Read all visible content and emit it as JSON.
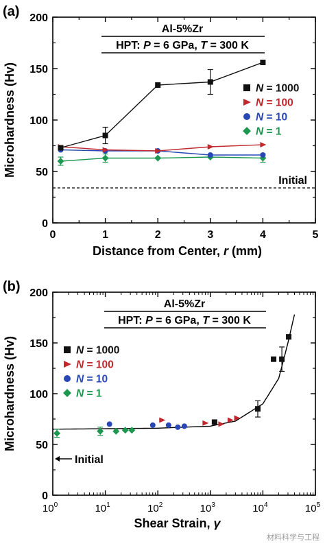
{
  "chart_data": [
    {
      "panel_label": "(a)",
      "type": "line",
      "title_line1": "Al-5%Zr",
      "title_line2_prefix": "HPT: ",
      "title_line2_P": "P",
      "title_line2_mid": " = 6 GPa, ",
      "title_line2_T": "T",
      "title_line2_suffix": " = 300 K",
      "xlabel_prefix": "Distance from Center, ",
      "xlabel_var": "r",
      "xlabel_suffix": " (mm)",
      "ylabel": "Microhardness (Hv)",
      "xlim": [
        0,
        5
      ],
      "ylim": [
        0,
        200
      ],
      "xticks": [
        0,
        1,
        2,
        3,
        4,
        5
      ],
      "yticks": [
        0,
        50,
        100,
        150,
        200
      ],
      "legend_position": "right",
      "reference_line": {
        "y": 34,
        "label": "Initial"
      },
      "series": [
        {
          "name_var": "N",
          "name_value": "1000",
          "color": "#111111",
          "marker": "square",
          "x": [
            0.15,
            1,
            2,
            3,
            4
          ],
          "y": [
            73,
            85,
            134,
            137,
            156
          ],
          "err": [
            0,
            8,
            0,
            12,
            0
          ]
        },
        {
          "name_var": "N",
          "name_value": "100",
          "color": "#c0282d",
          "marker": "triangle-right",
          "x": [
            0.15,
            1,
            2,
            3,
            4
          ],
          "y": [
            74,
            71,
            70,
            74,
            76
          ],
          "err": [
            0,
            0,
            0,
            0,
            0
          ]
        },
        {
          "name_var": "N",
          "name_value": "10",
          "color": "#2948b5",
          "marker": "circle",
          "x": [
            0.15,
            1,
            2,
            3,
            4
          ],
          "y": [
            71,
            70,
            70,
            66,
            66
          ],
          "err": [
            0,
            0,
            0,
            0,
            0
          ]
        },
        {
          "name_var": "N",
          "name_value": "1",
          "color": "#1e9850",
          "marker": "diamond",
          "x": [
            0.15,
            1,
            2,
            3,
            4
          ],
          "y": [
            60,
            63,
            63,
            64,
            63
          ],
          "err": [
            4,
            4,
            0,
            0,
            4
          ]
        }
      ]
    },
    {
      "panel_label": "(b)",
      "type": "scatter",
      "title_line1": "Al-5%Zr",
      "title_line2_prefix": "HPT: ",
      "title_line2_P": "P",
      "title_line2_mid": " = 6 GPa, ",
      "title_line2_T": "T",
      "title_line2_suffix": " = 300 K",
      "xlabel_prefix": "Shear Strain, ",
      "xlabel_var": "γ",
      "xlabel_suffix": "",
      "ylabel": "Microhardness (Hv)",
      "xscale": "log",
      "xlim": [
        1,
        100000
      ],
      "ylim": [
        0,
        200
      ],
      "xtick_base": "10",
      "xtick_exponents": [
        "0",
        "1",
        "2",
        "3",
        "4",
        "5"
      ],
      "yticks": [
        0,
        50,
        100,
        150,
        200
      ],
      "legend_position": "left",
      "annotation": {
        "label": "Initial",
        "arrow": "left"
      },
      "fit_curve": {
        "x": [
          1,
          10,
          100,
          1000,
          3000,
          10000,
          20000,
          30000,
          40000
        ],
        "y": [
          65,
          65.5,
          66,
          68,
          73,
          90,
          115,
          150,
          178
        ]
      },
      "series": [
        {
          "name_var": "N",
          "name_value": "1000",
          "color": "#111111",
          "marker": "square",
          "x": [
            1200,
            8000,
            16000,
            23000,
            31000
          ],
          "y": [
            72,
            85,
            134,
            134,
            156
          ],
          "err": [
            0,
            8,
            0,
            12,
            0
          ]
        },
        {
          "name_var": "N",
          "name_value": "100",
          "color": "#c0282d",
          "marker": "triangle-right",
          "x": [
            120,
            800,
            1600,
            2400,
            3200
          ],
          "y": [
            74,
            71,
            70,
            74,
            76
          ],
          "err": [
            0,
            0,
            0,
            0,
            0
          ]
        },
        {
          "name_var": "N",
          "name_value": "10",
          "color": "#2948b5",
          "marker": "circle",
          "x": [
            12,
            80,
            160,
            240,
            320
          ],
          "y": [
            70,
            69,
            69,
            67,
            68
          ],
          "err": [
            0,
            0,
            0,
            0,
            0
          ]
        },
        {
          "name_var": "N",
          "name_value": "1",
          "color": "#1e9850",
          "marker": "diamond",
          "x": [
            1.2,
            8,
            16,
            24,
            32
          ],
          "y": [
            61,
            63,
            63,
            64,
            64
          ],
          "err": [
            4,
            4,
            0,
            0,
            0
          ]
        }
      ]
    }
  ],
  "watermark": "材料科学与工程"
}
